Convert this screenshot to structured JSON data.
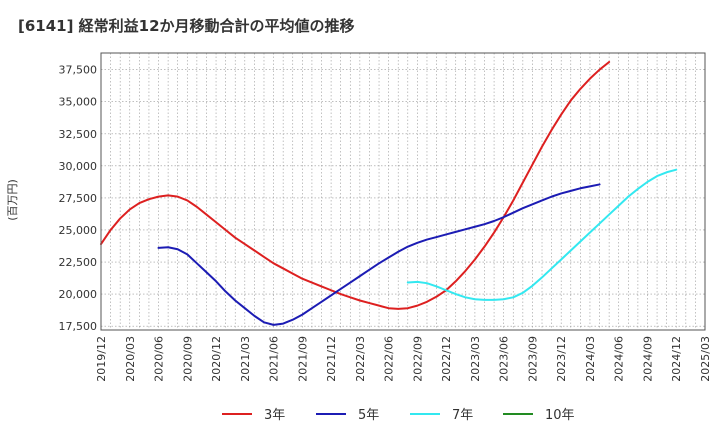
{
  "chart_data": {
    "type": "line",
    "title": "[6141]  経常利益12か月移動合計の平均値の推移",
    "ylabel": "(百万円)",
    "xlabel": "",
    "ylim": [
      17200,
      38800
    ],
    "y_ticks": [
      17500,
      20000,
      22500,
      25000,
      27500,
      30000,
      32500,
      35000,
      37500
    ],
    "y_tick_labels": [
      "17,500",
      "20,000",
      "22,500",
      "25,000",
      "27,500",
      "30,000",
      "32,500",
      "35,000",
      "37,500"
    ],
    "x_tick_labels": [
      "2019/12",
      "2020/03",
      "2020/06",
      "2020/09",
      "2020/12",
      "2021/03",
      "2021/06",
      "2021/09",
      "2021/12",
      "2022/03",
      "2022/06",
      "2022/09",
      "2022/12",
      "2023/03",
      "2023/06",
      "2023/09",
      "2023/12",
      "2024/03",
      "2024/06",
      "2024/09",
      "2024/12",
      "2025/03"
    ],
    "grid": true,
    "legend_position": "bottom",
    "series": [
      {
        "name": "3年",
        "color": "#dd2020",
        "values": [
          [
            0,
            23900
          ],
          [
            1,
            25000
          ],
          [
            2,
            25900
          ],
          [
            3,
            26600
          ],
          [
            4,
            27100
          ],
          [
            5,
            27400
          ],
          [
            6,
            27600
          ],
          [
            7,
            27700
          ],
          [
            8,
            27600
          ],
          [
            9,
            27300
          ],
          [
            10,
            26800
          ],
          [
            11,
            26200
          ],
          [
            12,
            25600
          ],
          [
            13,
            25000
          ],
          [
            14,
            24400
          ],
          [
            15,
            23900
          ],
          [
            16,
            23400
          ],
          [
            17,
            22900
          ],
          [
            18,
            22400
          ],
          [
            19,
            22000
          ],
          [
            20,
            21600
          ],
          [
            21,
            21200
          ],
          [
            22,
            20900
          ],
          [
            23,
            20600
          ],
          [
            24,
            20300
          ],
          [
            25,
            20000
          ],
          [
            26,
            19750
          ],
          [
            27,
            19500
          ],
          [
            28,
            19300
          ],
          [
            29,
            19100
          ],
          [
            30,
            18900
          ],
          [
            31,
            18850
          ],
          [
            32,
            18900
          ],
          [
            33,
            19100
          ],
          [
            34,
            19400
          ],
          [
            35,
            19800
          ],
          [
            36,
            20300
          ],
          [
            37,
            21000
          ],
          [
            38,
            21800
          ],
          [
            39,
            22700
          ],
          [
            40,
            23700
          ],
          [
            41,
            24800
          ],
          [
            42,
            26000
          ],
          [
            43,
            27300
          ],
          [
            44,
            28700
          ],
          [
            45,
            30100
          ],
          [
            46,
            31500
          ],
          [
            47,
            32800
          ],
          [
            48,
            34000
          ],
          [
            49,
            35100
          ],
          [
            50,
            36000
          ],
          [
            51,
            36800
          ],
          [
            52,
            37500
          ],
          [
            53,
            38100
          ]
        ]
      },
      {
        "name": "5年",
        "color": "#1c1cb4",
        "values": [
          [
            6,
            23600
          ],
          [
            7,
            23650
          ],
          [
            8,
            23500
          ],
          [
            9,
            23100
          ],
          [
            10,
            22400
          ],
          [
            11,
            21700
          ],
          [
            12,
            21000
          ],
          [
            13,
            20200
          ],
          [
            14,
            19500
          ],
          [
            15,
            18900
          ],
          [
            16,
            18300
          ],
          [
            17,
            17800
          ],
          [
            18,
            17600
          ],
          [
            19,
            17700
          ],
          [
            20,
            18000
          ],
          [
            21,
            18400
          ],
          [
            22,
            18900
          ],
          [
            23,
            19400
          ],
          [
            24,
            19900
          ],
          [
            25,
            20400
          ],
          [
            26,
            20900
          ],
          [
            27,
            21400
          ],
          [
            28,
            21900
          ],
          [
            29,
            22400
          ],
          [
            30,
            22850
          ],
          [
            31,
            23300
          ],
          [
            32,
            23700
          ],
          [
            33,
            24000
          ],
          [
            34,
            24250
          ],
          [
            35,
            24450
          ],
          [
            36,
            24650
          ],
          [
            37,
            24850
          ],
          [
            38,
            25050
          ],
          [
            39,
            25250
          ],
          [
            40,
            25450
          ],
          [
            41,
            25700
          ],
          [
            42,
            26000
          ],
          [
            43,
            26350
          ],
          [
            44,
            26700
          ],
          [
            45,
            27000
          ],
          [
            46,
            27300
          ],
          [
            47,
            27600
          ],
          [
            48,
            27850
          ],
          [
            49,
            28050
          ],
          [
            50,
            28250
          ],
          [
            51,
            28400
          ],
          [
            52,
            28550
          ]
        ]
      },
      {
        "name": "7年",
        "color": "#33e8f0",
        "values": [
          [
            32,
            20900
          ],
          [
            33,
            20950
          ],
          [
            34,
            20850
          ],
          [
            35,
            20600
          ],
          [
            36,
            20300
          ],
          [
            37,
            20000
          ],
          [
            38,
            19750
          ],
          [
            39,
            19600
          ],
          [
            40,
            19550
          ],
          [
            41,
            19550
          ],
          [
            42,
            19600
          ],
          [
            43,
            19750
          ],
          [
            44,
            20100
          ],
          [
            45,
            20650
          ],
          [
            46,
            21300
          ],
          [
            47,
            22000
          ],
          [
            48,
            22700
          ],
          [
            49,
            23400
          ],
          [
            50,
            24100
          ],
          [
            51,
            24800
          ],
          [
            52,
            25500
          ],
          [
            53,
            26200
          ],
          [
            54,
            26900
          ],
          [
            55,
            27600
          ],
          [
            56,
            28200
          ],
          [
            57,
            28750
          ],
          [
            58,
            29200
          ],
          [
            59,
            29500
          ],
          [
            60,
            29700
          ]
        ]
      },
      {
        "name": "10年",
        "color": "#228b22",
        "values": []
      }
    ]
  }
}
